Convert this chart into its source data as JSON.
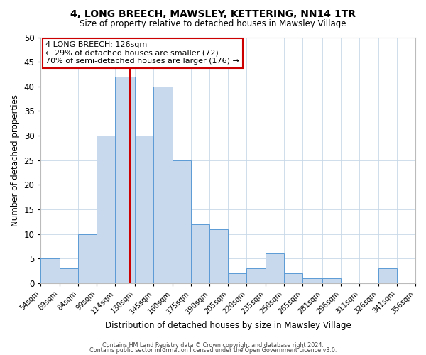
{
  "title": "4, LONG BREECH, MAWSLEY, KETTERING, NN14 1TR",
  "subtitle": "Size of property relative to detached houses in Mawsley Village",
  "xlabel": "Distribution of detached houses by size in Mawsley Village",
  "ylabel": "Number of detached properties",
  "bar_labels": [
    "54sqm",
    "69sqm",
    "84sqm",
    "99sqm",
    "114sqm",
    "130sqm",
    "145sqm",
    "160sqm",
    "175sqm",
    "190sqm",
    "205sqm",
    "220sqm",
    "235sqm",
    "250sqm",
    "265sqm",
    "281sqm",
    "296sqm",
    "311sqm",
    "326sqm",
    "341sqm",
    "356sqm"
  ],
  "bar_values": [
    5,
    3,
    10,
    30,
    42,
    30,
    40,
    25,
    12,
    11,
    2,
    3,
    6,
    2,
    1,
    1,
    0,
    0,
    3,
    0
  ],
  "bin_edges": [
    54,
    69,
    84,
    99,
    114,
    130,
    145,
    160,
    175,
    190,
    205,
    220,
    235,
    250,
    265,
    281,
    296,
    311,
    326,
    341,
    356
  ],
  "bar_color": "#c8d9ee",
  "bar_edgecolor": "#5b9bd5",
  "vline_x": 126,
  "vline_color": "#cc0000",
  "annotation_line1": "4 LONG BREECH: 126sqm",
  "annotation_line2": "← 29% of detached houses are smaller (72)",
  "annotation_line3": "70% of semi-detached houses are larger (176) →",
  "annotation_box_edgecolor": "#cc0000",
  "ylim": [
    0,
    50
  ],
  "yticks": [
    0,
    5,
    10,
    15,
    20,
    25,
    30,
    35,
    40,
    45,
    50
  ],
  "grid_color": "#c8d8e8",
  "background_color": "#ffffff",
  "footer1": "Contains HM Land Registry data © Crown copyright and database right 2024.",
  "footer2": "Contains public sector information licensed under the Open Government Licence v3.0."
}
